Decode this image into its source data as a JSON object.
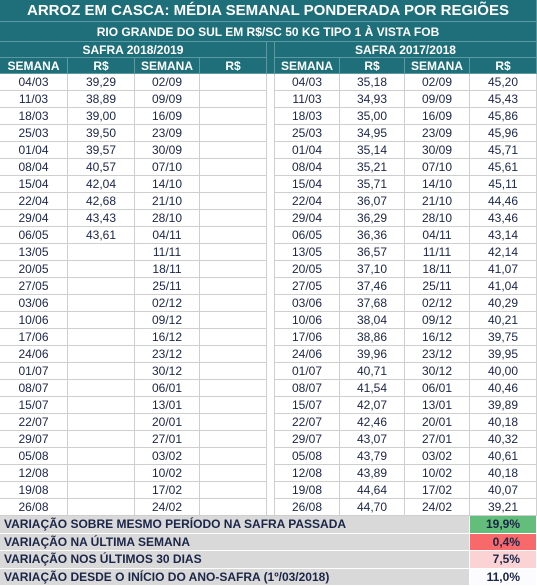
{
  "header": {
    "title": "ARROZ EM CASCA: MÉDIA SEMANAL PONDERADA POR REGIÕES",
    "subtitle": "RIO GRANDE DO SUL EM R$/SC 50 KG TIPO 1 À VISTA FOB"
  },
  "tables": [
    {
      "title": "SAFRA 2018/2019",
      "columns": [
        "SEMANA",
        "R$",
        "SEMANA",
        "R$"
      ],
      "rows": [
        [
          "04/03",
          "39,29",
          "02/09",
          null
        ],
        [
          "11/03",
          "38,89",
          "09/09",
          null
        ],
        [
          "18/03",
          "39,00",
          "16/09",
          null
        ],
        [
          "25/03",
          "39,50",
          "23/09",
          null
        ],
        [
          "01/04",
          "39,57",
          "30/09",
          null
        ],
        [
          "08/04",
          "40,57",
          "07/10",
          null
        ],
        [
          "15/04",
          "42,04",
          "14/10",
          null
        ],
        [
          "22/04",
          "42,68",
          "21/10",
          null
        ],
        [
          "29/04",
          "43,43",
          "28/10",
          null
        ],
        [
          "06/05",
          "43,61",
          "04/11",
          null
        ],
        [
          "13/05",
          null,
          "11/11",
          null
        ],
        [
          "20/05",
          null,
          "18/11",
          null
        ],
        [
          "27/05",
          null,
          "25/11",
          null
        ],
        [
          "03/06",
          null,
          "02/12",
          null
        ],
        [
          "10/06",
          null,
          "09/12",
          null
        ],
        [
          "17/06",
          null,
          "16/12",
          null
        ],
        [
          "24/06",
          null,
          "23/12",
          null
        ],
        [
          "01/07",
          null,
          "30/12",
          null
        ],
        [
          "08/07",
          null,
          "06/01",
          null
        ],
        [
          "15/07",
          null,
          "13/01",
          null
        ],
        [
          "22/07",
          null,
          "20/01",
          null
        ],
        [
          "29/07",
          null,
          "27/01",
          null
        ],
        [
          "05/08",
          null,
          "03/02",
          null
        ],
        [
          "12/08",
          null,
          "10/02",
          null
        ],
        [
          "19/08",
          null,
          "17/02",
          null
        ],
        [
          "26/08",
          null,
          "24/02",
          null
        ]
      ]
    },
    {
      "title": "SAFRA 2017/2018",
      "columns": [
        "SEMANA",
        "R$",
        "SEMANA",
        "R$"
      ],
      "rows": [
        [
          "04/03",
          "35,18",
          "02/09",
          "45,20"
        ],
        [
          "11/03",
          "34,93",
          "09/09",
          "45,43"
        ],
        [
          "18/03",
          "35,00",
          "16/09",
          "45,86"
        ],
        [
          "25/03",
          "34,95",
          "23/09",
          "45,96"
        ],
        [
          "01/04",
          "35,14",
          "30/09",
          "45,71"
        ],
        [
          "08/04",
          "35,21",
          "07/10",
          "45,61"
        ],
        [
          "15/04",
          "35,71",
          "14/10",
          "45,11"
        ],
        [
          "22/04",
          "36,07",
          "21/10",
          "44,46"
        ],
        [
          "29/04",
          "36,29",
          "28/10",
          "43,46"
        ],
        [
          "06/05",
          "36,36",
          "04/11",
          "43,14"
        ],
        [
          "13/05",
          "36,57",
          "11/11",
          "42,14"
        ],
        [
          "20/05",
          "37,10",
          "18/11",
          "41,07"
        ],
        [
          "27/05",
          "37,46",
          "25/11",
          "41,04"
        ],
        [
          "03/06",
          "37,68",
          "02/12",
          "40,29"
        ],
        [
          "10/06",
          "38,04",
          "09/12",
          "40,21"
        ],
        [
          "17/06",
          "38,86",
          "16/12",
          "39,75"
        ],
        [
          "24/06",
          "39,96",
          "23/12",
          "39,95"
        ],
        [
          "01/07",
          "40,71",
          "30/12",
          "40,00"
        ],
        [
          "08/07",
          "41,54",
          "06/01",
          "40,46"
        ],
        [
          "15/07",
          "42,07",
          "13/01",
          "39,89"
        ],
        [
          "22/07",
          "42,46",
          "20/01",
          "40,18"
        ],
        [
          "29/07",
          "43,07",
          "27/01",
          "40,32"
        ],
        [
          "05/08",
          "43,79",
          "03/02",
          "40,61"
        ],
        [
          "12/08",
          "43,89",
          "10/02",
          "40,18"
        ],
        [
          "19/08",
          "44,64",
          "17/02",
          "40,07"
        ],
        [
          "26/08",
          "44,70",
          "24/02",
          "39,21"
        ]
      ]
    }
  ],
  "summary": [
    {
      "label": "VARIAÇÃO SOBRE MESMO PERÍODO NA SAFRA PASSADA",
      "value": "19,9%"
    },
    {
      "label": "VARIAÇÃO NA ÚLTIMA SEMANA",
      "value": "0,4%"
    },
    {
      "label": "VARIAÇÃO NOS ÚLTIMOS 30 DIAS",
      "value": "7,5%"
    },
    {
      "label": "VARIAÇÃO DESDE O INÍCIO DO ANO-SAFRA (1º/03/2018)",
      "value": "11,0%"
    }
  ]
}
